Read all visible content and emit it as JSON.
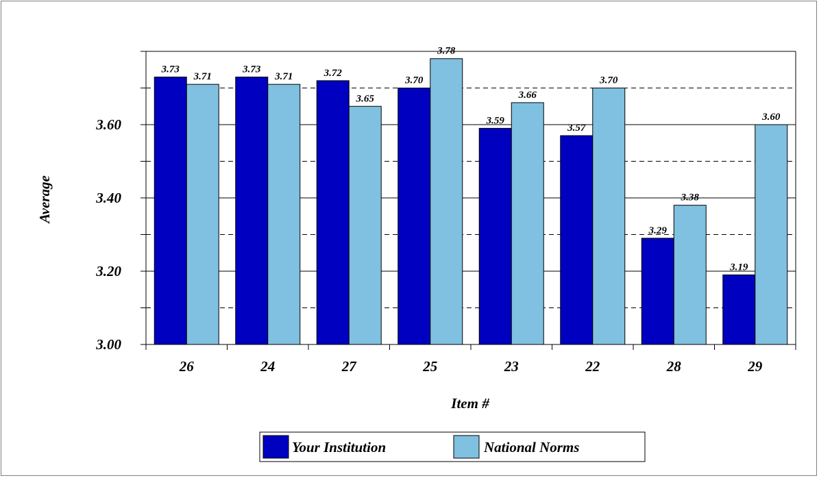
{
  "chart_data": {
    "type": "bar",
    "title": "",
    "xlabel": "Item #",
    "ylabel": "Average",
    "ylim": [
      3.0,
      3.8
    ],
    "yticks": [
      "3.00",
      "3.20",
      "3.40",
      "3.60"
    ],
    "y_tick_values": [
      3.0,
      3.2,
      3.4,
      3.6
    ],
    "y_dashed_gridlines": [
      3.1,
      3.3,
      3.5,
      3.7
    ],
    "grid": true,
    "legend_position": "bottom",
    "categories": [
      "26",
      "24",
      "27",
      "25",
      "23",
      "22",
      "28",
      "29"
    ],
    "series": [
      {
        "name": "Your Institution",
        "color": "#0000c0",
        "values": [
          3.73,
          3.73,
          3.72,
          3.7,
          3.59,
          3.57,
          3.29,
          3.19
        ],
        "labels": [
          "3.73",
          "3.73",
          "3.72",
          "3.70",
          "3.59",
          "3.57",
          "3.29",
          "3.19"
        ]
      },
      {
        "name": "National Norms",
        "color": "#80c0e0",
        "values": [
          3.71,
          3.71,
          3.65,
          3.78,
          3.66,
          3.7,
          3.38,
          3.6
        ],
        "labels": [
          "3.71",
          "3.71",
          "3.65",
          "3.78",
          "3.66",
          "3.70",
          "3.38",
          "3.60"
        ]
      }
    ]
  }
}
